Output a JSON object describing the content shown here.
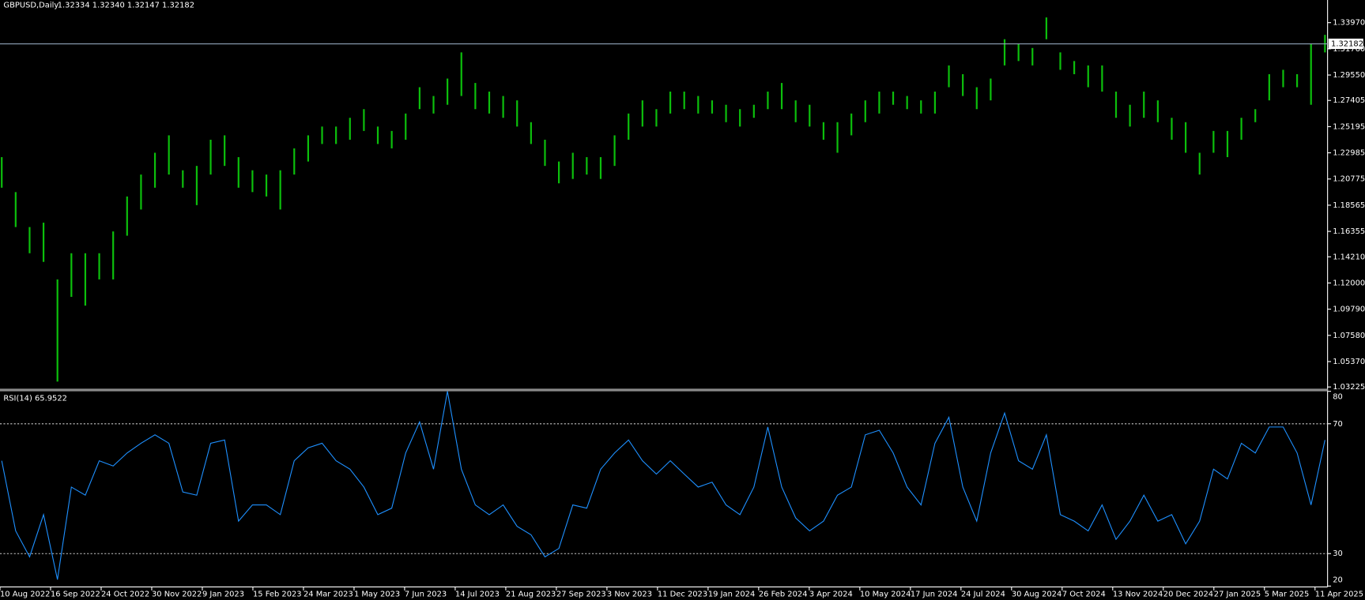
{
  "chart_data": [
    {
      "type": "range_bar",
      "title": "GBPUSD,Daily",
      "quote": "1.32334 1.32340 1.32147 1.32182",
      "color": "#0cbf0c",
      "price_line": 1.32182,
      "x_labels": [
        "10 Aug 2022",
        "16 Sep 2022",
        "24 Oct 2022",
        "30 Nov 2022",
        "9 Jan 2023",
        "15 Feb 2023",
        "24 Mar 2023",
        "1 May 2023",
        "7 Jun 2023",
        "14 Jul 2023",
        "21 Aug 2023",
        "27 Sep 2023",
        "3 Nov 2023",
        "11 Dec 2023",
        "19 Jan 2024",
        "26 Feb 2024",
        "3 Apr 2024",
        "10 May 2024",
        "17 Jun 2024",
        "24 Jul 2024",
        "30 Aug 2024",
        "7 Oct 2024",
        "13 Nov 2024",
        "20 Dec 2024",
        "27 Jan 2025",
        "5 Mar 2025",
        "11 Apr 2025"
      ],
      "high": [
        1.2262,
        1.1967,
        1.1672,
        1.1709,
        1.123,
        1.1451,
        1.1451,
        1.1451,
        1.1635,
        1.193,
        1.2115,
        1.2299,
        1.2446,
        1.2151,
        1.2188,
        1.2409,
        1.2446,
        1.2262,
        1.2151,
        1.2115,
        1.2151,
        1.2336,
        1.2446,
        1.252,
        1.252,
        1.2594,
        1.2667,
        1.252,
        1.2483,
        1.263,
        1.2852,
        1.2778,
        1.2925,
        1.3146,
        1.2888,
        1.2815,
        1.2778,
        1.2741,
        1.2557,
        1.2409,
        1.2225,
        1.2299,
        1.2262,
        1.2262,
        1.2446,
        1.263,
        1.2741,
        1.2667,
        1.2815,
        1.2815,
        1.2778,
        1.2741,
        1.2704,
        1.2667,
        1.2704,
        1.2815,
        1.2888,
        1.2741,
        1.2704,
        1.2557,
        1.2557,
        1.263,
        1.2741,
        1.2815,
        1.2815,
        1.2778,
        1.2741,
        1.2815,
        1.3036,
        1.2962,
        1.2852,
        1.2925,
        1.3257,
        1.322,
        1.3183,
        1.3441,
        1.3146,
        1.3073,
        1.3036,
        1.3036,
        1.2815,
        1.2704,
        1.2815,
        1.2741,
        1.2594,
        1.2557,
        1.2299,
        1.2483,
        1.2483,
        1.2594,
        1.2667,
        1.2962,
        1.2999,
        1.2962,
        1.322,
        1.3294
      ],
      "low": [
        1.2004,
        1.1672,
        1.1451,
        1.1378,
        1.0368,
        1.1083,
        1.1009,
        1.123,
        1.123,
        1.1599,
        1.182,
        1.2004,
        1.2115,
        1.2004,
        1.1857,
        1.2115,
        1.2188,
        1.2004,
        1.1967,
        1.193,
        1.182,
        1.2115,
        1.2225,
        1.2373,
        1.2373,
        1.2409,
        1.2483,
        1.2373,
        1.2336,
        1.2409,
        1.2667,
        1.263,
        1.2704,
        1.2778,
        1.2667,
        1.263,
        1.2594,
        1.252,
        1.2373,
        1.2188,
        1.2041,
        1.2078,
        1.2115,
        1.2078,
        1.2188,
        1.2409,
        1.252,
        1.252,
        1.263,
        1.2667,
        1.263,
        1.263,
        1.2557,
        1.252,
        1.2594,
        1.2667,
        1.2667,
        1.2557,
        1.252,
        1.2409,
        1.2299,
        1.2446,
        1.2557,
        1.263,
        1.2704,
        1.2667,
        1.263,
        1.263,
        1.2852,
        1.2778,
        1.2667,
        1.2741,
        1.3036,
        1.3073,
        1.3036,
        1.3257,
        1.2999,
        1.2962,
        1.2852,
        1.2815,
        1.2594,
        1.252,
        1.2594,
        1.2557,
        1.2409,
        1.2299,
        1.2115,
        1.2299,
        1.2262,
        1.2409,
        1.2557,
        1.2741,
        1.2852,
        1.2852,
        1.2704,
        1.3146
      ],
      "ylim": [
        1.0308,
        1.3588
      ],
      "yticks": [
        {
          "value": 1.3397,
          "label": "1.33970"
        },
        {
          "value": 1.3176,
          "label": "1.31760"
        },
        {
          "value": 1.2955,
          "label": "1.29550"
        },
        {
          "value": 1.27405,
          "label": "1.27405"
        },
        {
          "value": 1.25195,
          "label": "1.25195"
        },
        {
          "value": 1.22985,
          "label": "1.22985"
        },
        {
          "value": 1.20775,
          "label": "1.20775"
        },
        {
          "value": 1.18565,
          "label": "1.18565"
        },
        {
          "value": 1.16355,
          "label": "1.16355"
        },
        {
          "value": 1.1421,
          "label": "1.14210"
        },
        {
          "value": 1.12,
          "label": "1.12000"
        },
        {
          "value": 1.0979,
          "label": "1.09790"
        },
        {
          "value": 1.0758,
          "label": "1.07580"
        },
        {
          "value": 1.0537,
          "label": "1.05370"
        },
        {
          "value": 1.03225,
          "label": "1.03225"
        }
      ]
    },
    {
      "type": "line",
      "title": "RSI(14) 65.9522",
      "color": "#1e90ff",
      "values": [
        58.6,
        37,
        29,
        42,
        22,
        50.5,
        48,
        58.6,
        57,
        61,
        64,
        66.6,
        64,
        49,
        48,
        64,
        65,
        40,
        45,
        45,
        42,
        58.6,
        62.6,
        64,
        58.6,
        56,
        50.5,
        42,
        44,
        61,
        70.6,
        56,
        80,
        56,
        45,
        42,
        45,
        38.4,
        35.8,
        29,
        31.6,
        45,
        44,
        56,
        61,
        65,
        58.6,
        54.5,
        58.6,
        54.5,
        50.5,
        52,
        45,
        42,
        50.5,
        69,
        50.5,
        41,
        37,
        40,
        48,
        50.5,
        66.6,
        68,
        61,
        50.5,
        45,
        64,
        72,
        50.5,
        40,
        61,
        73.3,
        58.6,
        56,
        66.6,
        42,
        40,
        37,
        45,
        34.4,
        40,
        48,
        40,
        42,
        33,
        40,
        56,
        53,
        64,
        61,
        69,
        69,
        61,
        45,
        65
      ],
      "ylim": [
        20,
        80
      ],
      "yticks": [
        20,
        30,
        70,
        80
      ],
      "levels": [
        30,
        70
      ]
    }
  ]
}
